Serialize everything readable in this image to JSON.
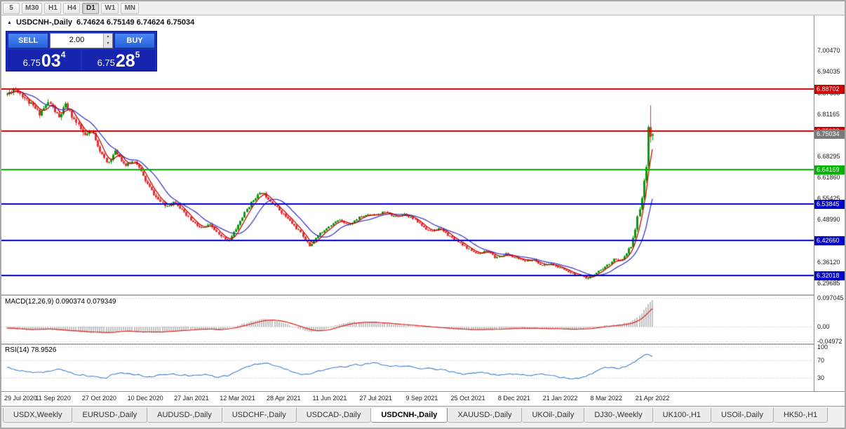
{
  "toolbar": {
    "timeframes": [
      {
        "label": "5",
        "active": false
      },
      {
        "label": "M30",
        "active": false
      },
      {
        "label": "H1",
        "active": false
      },
      {
        "label": "H4",
        "active": false
      },
      {
        "label": "D1",
        "active": true
      },
      {
        "label": "W1",
        "active": false
      },
      {
        "label": "MN",
        "active": false
      }
    ]
  },
  "chart": {
    "marker": "▲",
    "symbol_label": "USDCNH-,Daily",
    "ohlc": "6.74624 6.75149 6.74624 6.75034",
    "trade": {
      "sell_label": "SELL",
      "buy_label": "BUY",
      "volume": "2.00",
      "sell_price": {
        "head": "6.75",
        "big": "03",
        "sup": "4"
      },
      "buy_price": {
        "head": "6.75",
        "big": "28",
        "sup": "5"
      }
    },
    "price_axis_labels": [
      "7.00470",
      "6.94035",
      "6.87600",
      "6.81165",
      "6.74730",
      "6.68295",
      "6.61860",
      "6.55425",
      "6.48990",
      "6.42555",
      "6.36120",
      "6.29685"
    ],
    "levels": [
      {
        "price": 6.88702,
        "label": "6.88702",
        "color": "#cc0000"
      },
      {
        "price": 6.75998,
        "label": "6.75998",
        "color": "#cc0000"
      },
      {
        "price": 6.64169,
        "label": "6.64169",
        "color": "#00b300"
      },
      {
        "price": 6.53845,
        "label": "6.53845",
        "color": "#0000cc"
      },
      {
        "price": 6.4266,
        "label": "6.42660",
        "color": "#0000cc"
      },
      {
        "price": 6.32018,
        "label": "6.32018",
        "color": "#0000cc"
      }
    ],
    "current_price": {
      "price": 6.75034,
      "label": "6.75034",
      "color": "#7a7a7a"
    },
    "price_range": {
      "max": 7.112,
      "min": 6.262
    },
    "colors": {
      "up": "#0a9a0a",
      "down": "#e63030",
      "ma_fast": "#cc0000",
      "ma_slow": "#3a3ac8"
    }
  },
  "macd": {
    "label": "MACD(12,26,9) 0.090374 0.079349",
    "axis": [
      {
        "v": 0.097045,
        "label": "0.097045"
      },
      {
        "v": 0,
        "label": "0.00"
      },
      {
        "v": -0.04972,
        "label": "-0.04972"
      }
    ],
    "range": {
      "max": 0.105,
      "min": -0.057
    }
  },
  "rsi": {
    "label": "RSI(14) 78.9526",
    "axis": [
      {
        "v": 100,
        "label": "100"
      },
      {
        "v": 70,
        "label": "70"
      },
      {
        "v": 30,
        "label": "30"
      }
    ]
  },
  "time_axis": [
    "29 Jul 2020",
    "11 Sep 2020",
    "27 Oct 2020",
    "10 Dec 2020",
    "27 Jan 2021",
    "12 Mar 2021",
    "28 Apr 2021",
    "11 Jun 2021",
    "27 Jul 2021",
    "9 Sep 2021",
    "25 Oct 2021",
    "8 Dec 2021",
    "21 Jan 2022",
    "8 Mar 2022",
    "21 Apr 2022"
  ],
  "tabs": [
    {
      "label": "USDX,Weekly",
      "active": false
    },
    {
      "label": "EURUSD-,Daily",
      "active": false
    },
    {
      "label": "AUDUSD-,Daily",
      "active": false
    },
    {
      "label": "USDCHF-,Daily",
      "active": false
    },
    {
      "label": "USDCAD-,Daily",
      "active": false
    },
    {
      "label": "USDCNH-,Daily",
      "active": true
    },
    {
      "label": "XAUUSD-,Daily",
      "active": false
    },
    {
      "label": "UKOil-,Daily",
      "active": false
    },
    {
      "label": "DJ30-,Weekly",
      "active": false
    },
    {
      "label": "UK100-,H1",
      "active": false
    },
    {
      "label": "USOil-,Daily",
      "active": false
    },
    {
      "label": "HK50-,H1",
      "active": false
    }
  ],
  "chart_data": {
    "type": "candlestick",
    "symbol": "USDCNH",
    "timeframe": "Daily",
    "visible_range": {
      "start": "29 Jul 2020",
      "end": "21 Apr 2022"
    },
    "price_path": [
      [
        0,
        6.872
      ],
      [
        0.012,
        6.889
      ],
      [
        0.03,
        6.851
      ],
      [
        0.05,
        6.815
      ],
      [
        0.065,
        6.852
      ],
      [
        0.08,
        6.8
      ],
      [
        0.09,
        6.838
      ],
      [
        0.105,
        6.788
      ],
      [
        0.12,
        6.742
      ],
      [
        0.132,
        6.762
      ],
      [
        0.143,
        6.705
      ],
      [
        0.155,
        6.662
      ],
      [
        0.168,
        6.7
      ],
      [
        0.183,
        6.652
      ],
      [
        0.198,
        6.668
      ],
      [
        0.214,
        6.608
      ],
      [
        0.23,
        6.562
      ],
      [
        0.245,
        6.532
      ],
      [
        0.26,
        6.546
      ],
      [
        0.275,
        6.504
      ],
      [
        0.287,
        6.48
      ],
      [
        0.3,
        6.462
      ],
      [
        0.315,
        6.476
      ],
      [
        0.33,
        6.44
      ],
      [
        0.345,
        6.428
      ],
      [
        0.357,
        6.468
      ],
      [
        0.372,
        6.522
      ],
      [
        0.386,
        6.562
      ],
      [
        0.396,
        6.574
      ],
      [
        0.41,
        6.546
      ],
      [
        0.429,
        6.504
      ],
      [
        0.445,
        6.468
      ],
      [
        0.458,
        6.438
      ],
      [
        0.468,
        6.408
      ],
      [
        0.483,
        6.446
      ],
      [
        0.5,
        6.476
      ],
      [
        0.515,
        6.49
      ],
      [
        0.53,
        6.47
      ],
      [
        0.545,
        6.494
      ],
      [
        0.56,
        6.506
      ],
      [
        0.572,
        6.508
      ],
      [
        0.585,
        6.516
      ],
      [
        0.6,
        6.498
      ],
      [
        0.615,
        6.506
      ],
      [
        0.63,
        6.488
      ],
      [
        0.643,
        6.47
      ],
      [
        0.655,
        6.455
      ],
      [
        0.67,
        6.466
      ],
      [
        0.685,
        6.44
      ],
      [
        0.7,
        6.42
      ],
      [
        0.714,
        6.398
      ],
      [
        0.728,
        6.385
      ],
      [
        0.742,
        6.398
      ],
      [
        0.757,
        6.376
      ],
      [
        0.772,
        6.386
      ],
      [
        0.786,
        6.372
      ],
      [
        0.8,
        6.36
      ],
      [
        0.814,
        6.368
      ],
      [
        0.828,
        6.352
      ],
      [
        0.842,
        6.358
      ],
      [
        0.857,
        6.342
      ],
      [
        0.87,
        6.33
      ],
      [
        0.885,
        6.317
      ],
      [
        0.898,
        6.306
      ],
      [
        0.912,
        6.33
      ],
      [
        0.929,
        6.352
      ],
      [
        0.94,
        6.372
      ],
      [
        0.949,
        6.36
      ],
      [
        0.958,
        6.378
      ],
      [
        0.9655,
        6.402
      ],
      [
        0.972,
        6.448
      ],
      [
        0.978,
        6.506
      ],
      [
        0.984,
        6.565
      ],
      [
        0.989,
        6.636
      ],
      [
        0.9935,
        6.7
      ],
      [
        0.997,
        6.796
      ],
      [
        1,
        6.752
      ]
    ],
    "macd_path": [
      [
        0,
        -0.004
      ],
      [
        0.03,
        -0.011
      ],
      [
        0.06,
        -0.007
      ],
      [
        0.09,
        -0.014
      ],
      [
        0.12,
        -0.019
      ],
      [
        0.15,
        -0.021
      ],
      [
        0.18,
        -0.013
      ],
      [
        0.21,
        -0.019
      ],
      [
        0.24,
        -0.017
      ],
      [
        0.27,
        -0.011
      ],
      [
        0.3,
        -0.007
      ],
      [
        0.33,
        -0.011
      ],
      [
        0.355,
        0.002
      ],
      [
        0.375,
        0.016
      ],
      [
        0.395,
        0.027
      ],
      [
        0.415,
        0.022
      ],
      [
        0.435,
        0.008
      ],
      [
        0.455,
        -0.009
      ],
      [
        0.47,
        -0.019
      ],
      [
        0.49,
        -0.012
      ],
      [
        0.51,
        0.005
      ],
      [
        0.53,
        0.015
      ],
      [
        0.555,
        0.017
      ],
      [
        0.58,
        0.012
      ],
      [
        0.6,
        0.008
      ],
      [
        0.63,
        0.003
      ],
      [
        0.66,
        -0.003
      ],
      [
        0.69,
        -0.008
      ],
      [
        0.72,
        -0.011
      ],
      [
        0.75,
        -0.008
      ],
      [
        0.78,
        -0.006
      ],
      [
        0.81,
        -0.005
      ],
      [
        0.84,
        -0.007
      ],
      [
        0.87,
        -0.009
      ],
      [
        0.895,
        -0.007
      ],
      [
        0.915,
        0.001
      ],
      [
        0.935,
        0.005
      ],
      [
        0.952,
        0.009
      ],
      [
        0.965,
        0.016
      ],
      [
        0.975,
        0.028
      ],
      [
        0.983,
        0.045
      ],
      [
        0.99,
        0.066
      ],
      [
        0.995,
        0.082
      ],
      [
        1,
        0.090374
      ]
    ],
    "rsi_path": [
      [
        0,
        54
      ],
      [
        0.02,
        46
      ],
      [
        0.05,
        40
      ],
      [
        0.08,
        51
      ],
      [
        0.105,
        38
      ],
      [
        0.13,
        34
      ],
      [
        0.155,
        30
      ],
      [
        0.17,
        42
      ],
      [
        0.2,
        37
      ],
      [
        0.225,
        32
      ],
      [
        0.25,
        40
      ],
      [
        0.275,
        36
      ],
      [
        0.3,
        38
      ],
      [
        0.325,
        33
      ],
      [
        0.345,
        36
      ],
      [
        0.36,
        48
      ],
      [
        0.38,
        60
      ],
      [
        0.4,
        66
      ],
      [
        0.42,
        57
      ],
      [
        0.44,
        46
      ],
      [
        0.462,
        36
      ],
      [
        0.478,
        42
      ],
      [
        0.5,
        52
      ],
      [
        0.525,
        56
      ],
      [
        0.55,
        61
      ],
      [
        0.575,
        63
      ],
      [
        0.595,
        55
      ],
      [
        0.615,
        58
      ],
      [
        0.64,
        50
      ],
      [
        0.66,
        53
      ],
      [
        0.685,
        44
      ],
      [
        0.71,
        38
      ],
      [
        0.735,
        43
      ],
      [
        0.76,
        37
      ],
      [
        0.785,
        40
      ],
      [
        0.81,
        36
      ],
      [
        0.835,
        39
      ],
      [
        0.858,
        32
      ],
      [
        0.882,
        28
      ],
      [
        0.9,
        35
      ],
      [
        0.915,
        48
      ],
      [
        0.93,
        56
      ],
      [
        0.945,
        50
      ],
      [
        0.958,
        56
      ],
      [
        0.968,
        63
      ],
      [
        0.978,
        72
      ],
      [
        0.986,
        82
      ],
      [
        0.992,
        86
      ],
      [
        1,
        78.95
      ]
    ]
  }
}
